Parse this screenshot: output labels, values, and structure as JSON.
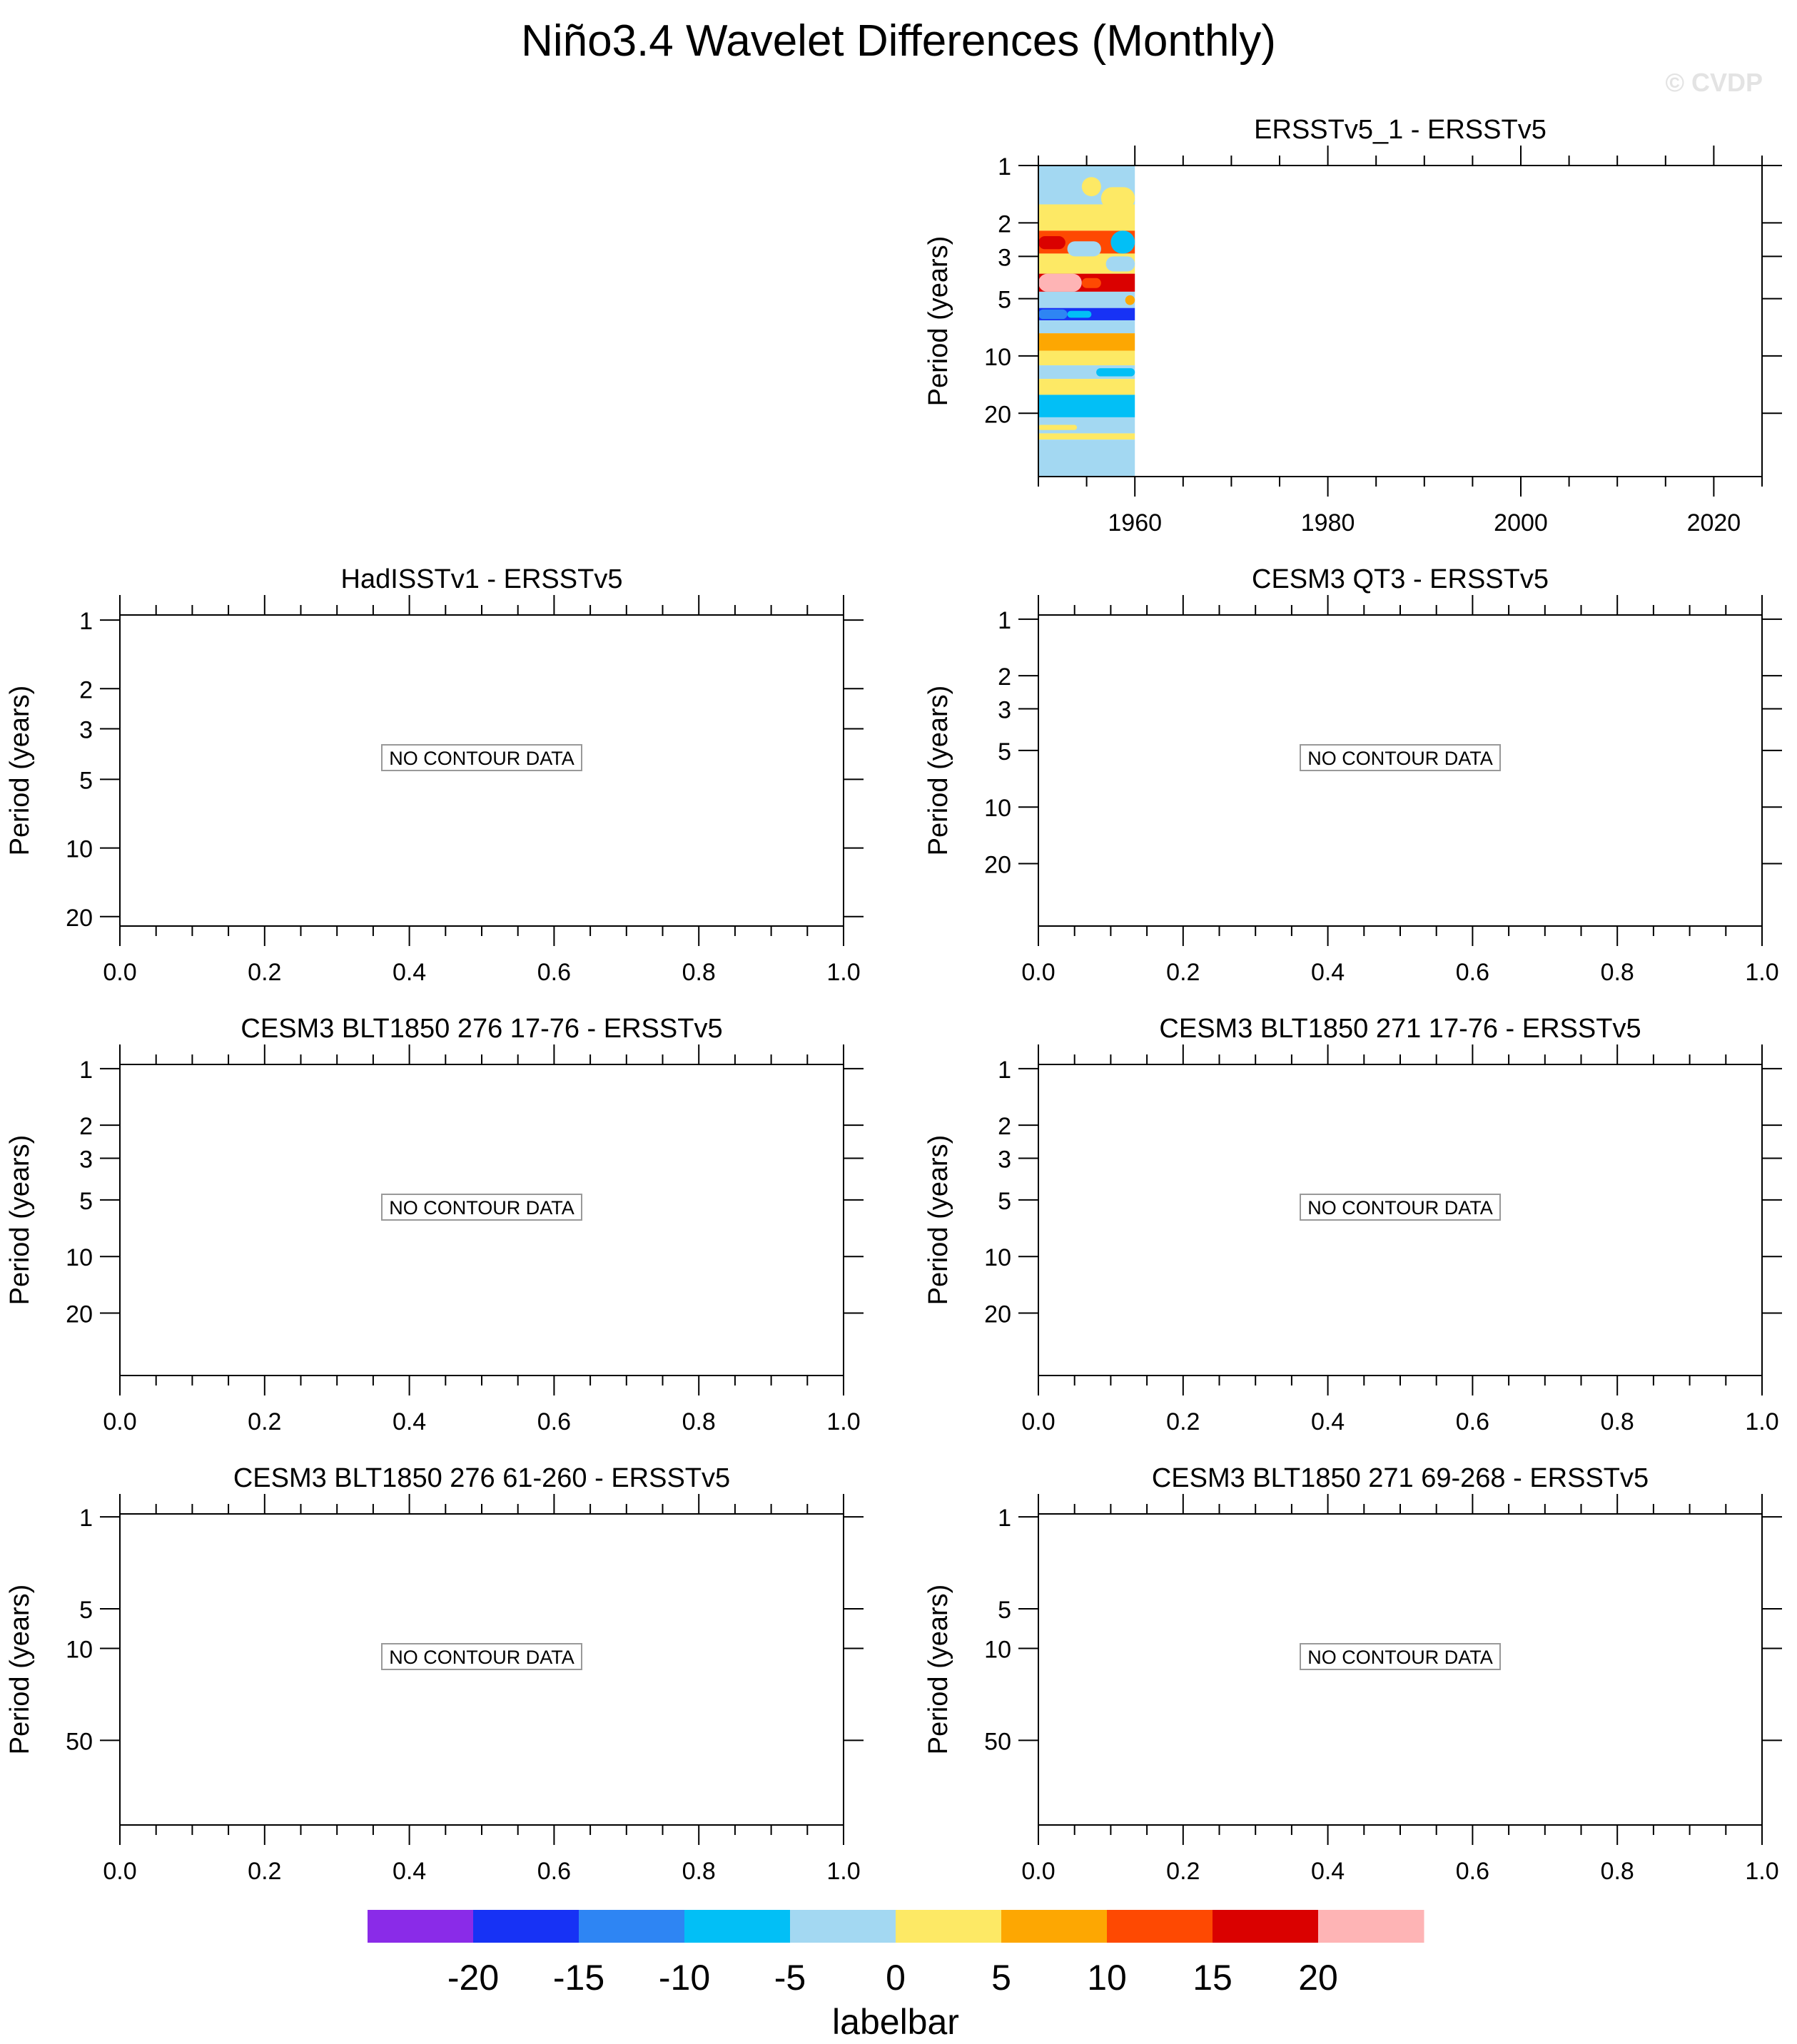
{
  "title": "Niño3.4 Wavelet Differences (Monthly)",
  "watermark": "© CVDP",
  "colors": {
    "axis": "#000000",
    "watermark": "#e3e3e3",
    "nodata_box": "#999999"
  },
  "labelbar": {
    "label": "labelbar",
    "levels": [
      "-20",
      "-15",
      "-10",
      "-5",
      "0",
      "5",
      "10",
      "15",
      "20"
    ],
    "colors": [
      "#8a2be8",
      "#1732f5",
      "#2e85f3",
      "#02bff6",
      "#a3d8f2",
      "#fde965",
      "#fda702",
      "#fe4902",
      "#da0100",
      "#feb4b5"
    ]
  },
  "chart_data": [
    {
      "type": "heatmap",
      "title": "ERSSTv5_1 - ERSSTv5",
      "ylabel": "Period (years)",
      "yscale": "log",
      "yreversed": true,
      "ylim": [
        1,
        43
      ],
      "yticks": [
        1,
        2,
        3,
        5,
        10,
        20
      ],
      "ytick_labels": [
        "1",
        "2",
        "3",
        "5",
        "10",
        "20"
      ],
      "xlim": [
        1950,
        2025
      ],
      "xticks": [
        1960,
        1980,
        2000,
        2020
      ],
      "xtick_labels": [
        "1960",
        "1980",
        "2000",
        "2020"
      ],
      "data_xrange": [
        1950,
        1960
      ],
      "bands": [
        {
          "from": 1.0,
          "to": 1.6,
          "class": 4
        },
        {
          "from": 1.6,
          "to": 2.2,
          "class": 5
        },
        {
          "from": 2.2,
          "to": 2.9,
          "class": 7
        },
        {
          "from": 2.9,
          "to": 3.7,
          "class": 5
        },
        {
          "from": 3.7,
          "to": 4.6,
          "class": 8
        },
        {
          "from": 4.6,
          "to": 5.6,
          "class": 4
        },
        {
          "from": 5.6,
          "to": 6.5,
          "class": 1
        },
        {
          "from": 6.5,
          "to": 7.6,
          "class": 4
        },
        {
          "from": 7.6,
          "to": 9.4,
          "class": 6
        },
        {
          "from": 9.4,
          "to": 11.2,
          "class": 5
        },
        {
          "from": 11.2,
          "to": 13.2,
          "class": 4
        },
        {
          "from": 13.2,
          "to": 16.0,
          "class": 5
        },
        {
          "from": 16.0,
          "to": 21.0,
          "class": 3
        },
        {
          "from": 21.0,
          "to": 25.5,
          "class": 4
        },
        {
          "from": 25.5,
          "to": 27.5,
          "class": 5
        },
        {
          "from": 27.5,
          "to": 43.0,
          "class": 4
        }
      ],
      "blobs": [
        {
          "t0": 1954.5,
          "t1": 1956.5,
          "p0": 1.15,
          "p1": 1.45,
          "class": 5
        },
        {
          "t0": 1956.5,
          "t1": 1960,
          "p0": 1.3,
          "p1": 1.7,
          "class": 5
        },
        {
          "t0": 1950,
          "t1": 1952.8,
          "p0": 2.35,
          "p1": 2.75,
          "class": 8
        },
        {
          "t0": 1953,
          "t1": 1956.5,
          "p0": 2.5,
          "p1": 3.0,
          "class": 4
        },
        {
          "t0": 1957.5,
          "t1": 1960,
          "p0": 2.2,
          "p1": 2.9,
          "class": 3
        },
        {
          "t0": 1957,
          "t1": 1960,
          "p0": 3.0,
          "p1": 3.6,
          "class": 4
        },
        {
          "t0": 1950,
          "t1": 1954.5,
          "p0": 3.7,
          "p1": 4.6,
          "class": 9
        },
        {
          "t0": 1954.5,
          "t1": 1956.5,
          "p0": 3.9,
          "p1": 4.4,
          "class": 7
        },
        {
          "t0": 1950,
          "t1": 1953,
          "p0": 5.7,
          "p1": 6.4,
          "class": 2
        },
        {
          "t0": 1953,
          "t1": 1955.5,
          "p0": 5.8,
          "p1": 6.3,
          "class": 3
        },
        {
          "t0": 1959,
          "t1": 1960,
          "p0": 4.8,
          "p1": 5.4,
          "class": 6
        },
        {
          "t0": 1956,
          "t1": 1960,
          "p0": 11.6,
          "p1": 12.8,
          "class": 3
        },
        {
          "t0": 1950,
          "t1": 1954,
          "p0": 23.0,
          "p1": 24.5,
          "class": 5
        }
      ]
    },
    {
      "type": "heatmap",
      "title": "HadISSTv1 - ERSSTv5",
      "ylabel": "Period (years)",
      "yscale": "log",
      "yreversed": true,
      "ylim": [
        0.95,
        22
      ],
      "yticks": [
        1,
        2,
        3,
        5,
        10,
        20
      ],
      "ytick_labels": [
        "1",
        "2",
        "3",
        "5",
        "10",
        "20"
      ],
      "xlim": [
        0,
        1
      ],
      "xticks": [
        0,
        0.2,
        0.4,
        0.6,
        0.8,
        1.0
      ],
      "xtick_labels": [
        "0.0",
        "0.2",
        "0.4",
        "0.6",
        "0.8",
        "1.0"
      ],
      "message": "NO CONTOUR DATA"
    },
    {
      "type": "heatmap",
      "title": "CESM3 QT3 - ERSSTv5",
      "ylabel": "Period (years)",
      "yscale": "log",
      "yreversed": true,
      "ylim": [
        0.95,
        43
      ],
      "yticks": [
        1,
        2,
        3,
        5,
        10,
        20
      ],
      "ytick_labels": [
        "1",
        "2",
        "3",
        "5",
        "10",
        "20"
      ],
      "xlim": [
        0,
        1
      ],
      "xticks": [
        0,
        0.2,
        0.4,
        0.6,
        0.8,
        1.0
      ],
      "xtick_labels": [
        "0.0",
        "0.2",
        "0.4",
        "0.6",
        "0.8",
        "1.0"
      ],
      "message": "NO CONTOUR DATA"
    },
    {
      "type": "heatmap",
      "title": "CESM3 BLT1850 276 17-76 - ERSSTv5",
      "ylabel": "Period (years)",
      "yscale": "log",
      "yreversed": true,
      "ylim": [
        0.95,
        43
      ],
      "yticks": [
        1,
        2,
        3,
        5,
        10,
        20
      ],
      "ytick_labels": [
        "1",
        "2",
        "3",
        "5",
        "10",
        "20"
      ],
      "xlim": [
        0,
        1
      ],
      "xticks": [
        0,
        0.2,
        0.4,
        0.6,
        0.8,
        1.0
      ],
      "xtick_labels": [
        "0.0",
        "0.2",
        "0.4",
        "0.6",
        "0.8",
        "1.0"
      ],
      "message": "NO CONTOUR DATA"
    },
    {
      "type": "heatmap",
      "title": "CESM3 BLT1850 271 17-76 - ERSSTv5",
      "ylabel": "Period (years)",
      "yscale": "log",
      "yreversed": true,
      "ylim": [
        0.95,
        43
      ],
      "yticks": [
        1,
        2,
        3,
        5,
        10,
        20
      ],
      "ytick_labels": [
        "1",
        "2",
        "3",
        "5",
        "10",
        "20"
      ],
      "xlim": [
        0,
        1
      ],
      "xticks": [
        0,
        0.2,
        0.4,
        0.6,
        0.8,
        1.0
      ],
      "xtick_labels": [
        "0.0",
        "0.2",
        "0.4",
        "0.6",
        "0.8",
        "1.0"
      ],
      "message": "NO CONTOUR DATA"
    },
    {
      "type": "heatmap",
      "title": "CESM3 BLT1850 276 61-260 - ERSSTv5",
      "ylabel": "Period (years)",
      "yscale": "log",
      "yreversed": true,
      "ylim": [
        0.95,
        220
      ],
      "yticks": [
        1,
        5,
        10,
        50
      ],
      "ytick_labels": [
        "1",
        "5",
        "10",
        "50"
      ],
      "xlim": [
        0,
        1
      ],
      "xticks": [
        0,
        0.2,
        0.4,
        0.6,
        0.8,
        1.0
      ],
      "xtick_labels": [
        "0.0",
        "0.2",
        "0.4",
        "0.6",
        "0.8",
        "1.0"
      ],
      "message": "NO CONTOUR DATA"
    },
    {
      "type": "heatmap",
      "title": "CESM3 BLT1850 271 69-268 - ERSSTv5",
      "ylabel": "Period (years)",
      "yscale": "log",
      "yreversed": true,
      "ylim": [
        0.95,
        220
      ],
      "yticks": [
        1,
        5,
        10,
        50
      ],
      "ytick_labels": [
        "1",
        "5",
        "10",
        "50"
      ],
      "xlim": [
        0,
        1
      ],
      "xticks": [
        0,
        0.2,
        0.4,
        0.6,
        0.8,
        1.0
      ],
      "xtick_labels": [
        "0.0",
        "0.2",
        "0.4",
        "0.6",
        "0.8",
        "1.0"
      ],
      "message": "NO CONTOUR DATA"
    }
  ]
}
